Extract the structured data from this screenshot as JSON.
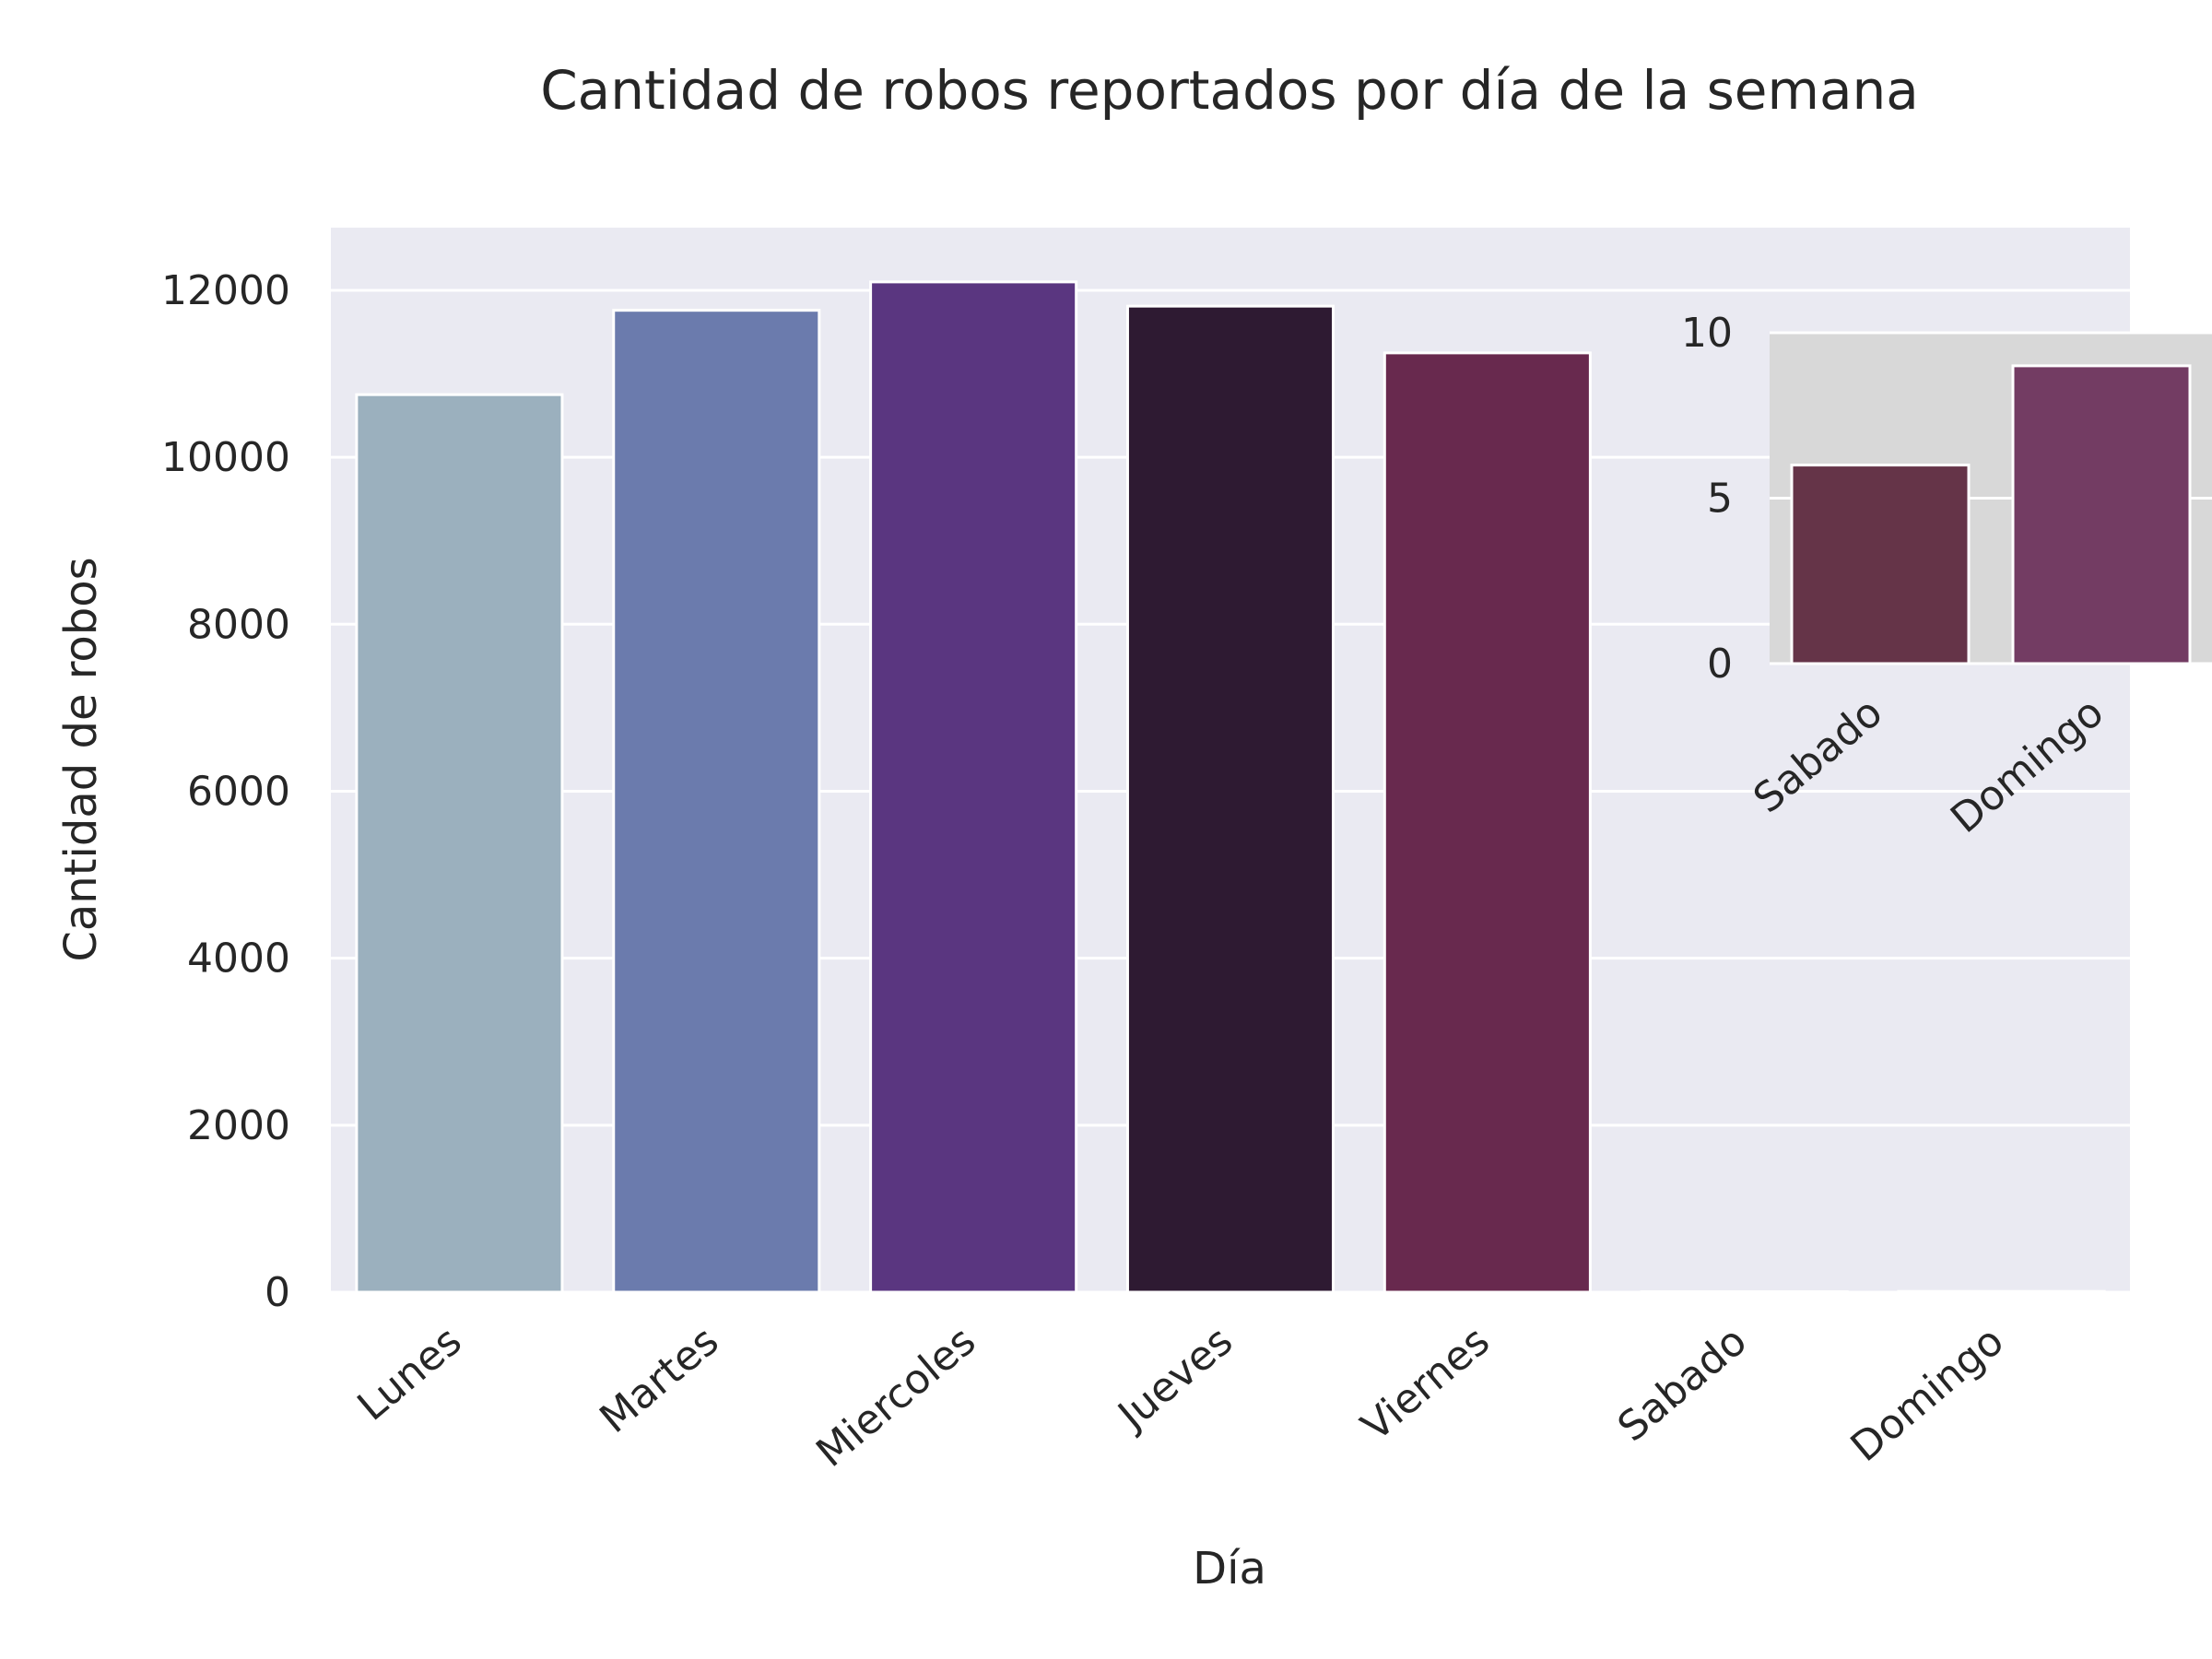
{
  "chart_data": [
    {
      "type": "bar",
      "title": "Cantidad de robos reportados por día de la semana",
      "xlabel": "Día",
      "ylabel": "Cantidad de robos",
      "categories": [
        "Lunes",
        "Martes",
        "Miercoles",
        "Jueves",
        "Viernes",
        "Sabado",
        "Domingo"
      ],
      "values": [
        10750,
        11760,
        12100,
        11810,
        11250,
        6,
        9
      ],
      "yticks": [
        "0",
        "2000",
        "4000",
        "6000",
        "8000",
        "10000",
        "12000"
      ],
      "ylim": [
        0,
        12750
      ],
      "colors": [
        "#9bb0be",
        "#6b7bad",
        "#5a3680",
        "#2e1a32",
        "#68294e",
        "#653448",
        "#733c63"
      ],
      "grid": true,
      "background": "#eaeaf2"
    },
    {
      "type": "bar",
      "role": "inset",
      "title": "",
      "xlabel": "",
      "ylabel": "",
      "categories": [
        "Sabado",
        "Domingo"
      ],
      "values": [
        6,
        9
      ],
      "yticks": [
        "0",
        "5",
        "10"
      ],
      "ylim": [
        0,
        10
      ],
      "colors": [
        "#653448",
        "#733c63"
      ],
      "grid": true,
      "background": "#d8d8d8"
    }
  ]
}
